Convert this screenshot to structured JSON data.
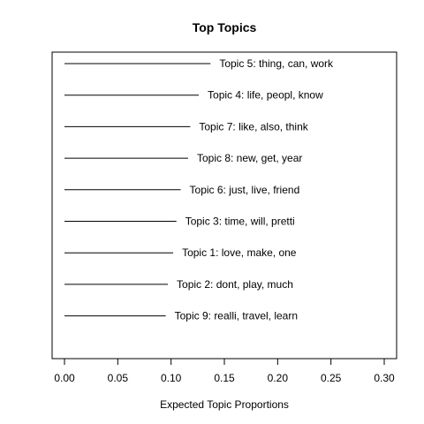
{
  "chart_data": {
    "type": "bar",
    "orientation": "horizontal",
    "title": "Top Topics",
    "xlabel": "Expected Topic Proportions",
    "ylabel": "",
    "xlim": [
      0,
      0.3
    ],
    "xticks": [
      "0.00",
      "0.05",
      "0.10",
      "0.15",
      "0.20",
      "0.25",
      "0.30"
    ],
    "grid": false,
    "categories": [
      "Topic 5: thing, can, work",
      "Topic 4: life, peopl, know",
      "Topic 7: like, also, think",
      "Topic 8: new, get, year",
      "Topic 6: just, live, friend",
      "Topic 3: time, will, pretti",
      "Topic 1: love, make, one",
      "Topic 2: dont, play, much",
      "Topic 9: realli, travel, learn"
    ],
    "values": [
      0.137,
      0.126,
      0.118,
      0.116,
      0.109,
      0.105,
      0.102,
      0.097,
      0.095
    ]
  }
}
